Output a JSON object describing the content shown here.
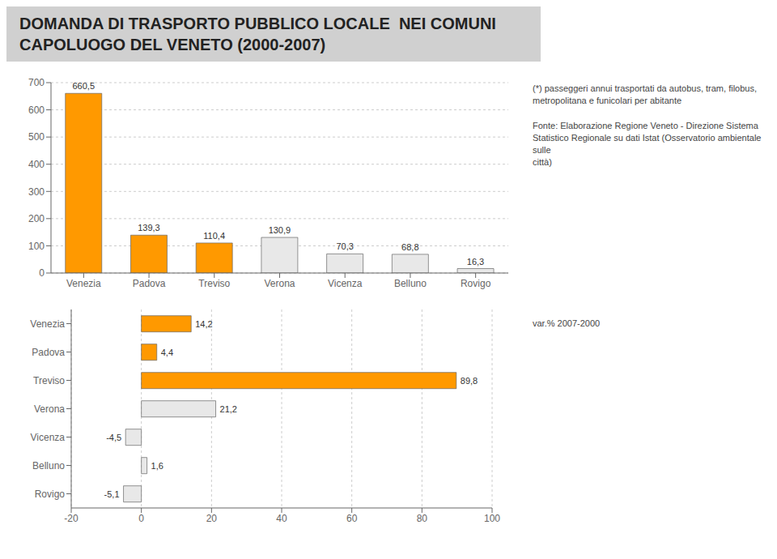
{
  "chart_data": [
    {
      "type": "bar",
      "title": "DOMANDA DI TRASPORTO PUBBLICO LOCALE  NEI COMUNI\nCAPOLUOGO DEL VENETO (2000-2007)",
      "categories": [
        "Venezia",
        "Padova",
        "Treviso",
        "Verona",
        "Vicenza",
        "Belluno",
        "Rovigo"
      ],
      "values": [
        660.5,
        139.3,
        110.4,
        130.9,
        70.3,
        68.8,
        16.3
      ],
      "value_labels": [
        "660,5",
        "139,3",
        "110,4",
        "130,9",
        "70,3",
        "68,8",
        "16,3"
      ],
      "data_labels": true,
      "colors": [
        "#ff9900",
        "#ff9900",
        "#ff9900",
        "#e8e8e8",
        "#e8e8e8",
        "#e8e8e8",
        "#e8e8e8"
      ],
      "ylim": [
        0,
        700
      ],
      "yticks": [
        0,
        100,
        200,
        300,
        400,
        500,
        600,
        700
      ],
      "grid": true,
      "annotations": [
        "(*) passeggeri annui trasportati da autobus, tram, filobus,\nmetropolitana e funicolari per abitante",
        "Fonte: Elaborazione Regione Veneto - Direzione Sistema\nStatistico Regionale su dati Istat (Osservatorio ambientale sulle\ncittà)"
      ]
    },
    {
      "type": "bar",
      "orientation": "horizontal",
      "categories": [
        "Venezia",
        "Padova",
        "Treviso",
        "Verona",
        "Vicenza",
        "Belluno",
        "Rovigo"
      ],
      "values": [
        14.2,
        4.4,
        89.8,
        21.2,
        -4.5,
        1.6,
        -5.1
      ],
      "value_labels": [
        "14,2",
        "4,4",
        "89,8",
        "21,2",
        "-4,5",
        "1,6",
        "-5,1"
      ],
      "data_labels": true,
      "colors": [
        "#ff9900",
        "#ff9900",
        "#ff9900",
        "#e8e8e8",
        "#e8e8e8",
        "#e8e8e8",
        "#e8e8e8"
      ],
      "xlim": [
        -20,
        100
      ],
      "xticks": [
        -20,
        0,
        20,
        40,
        60,
        80,
        100
      ],
      "grid": true,
      "annotations": [
        "var.% 2007-2000"
      ]
    }
  ]
}
